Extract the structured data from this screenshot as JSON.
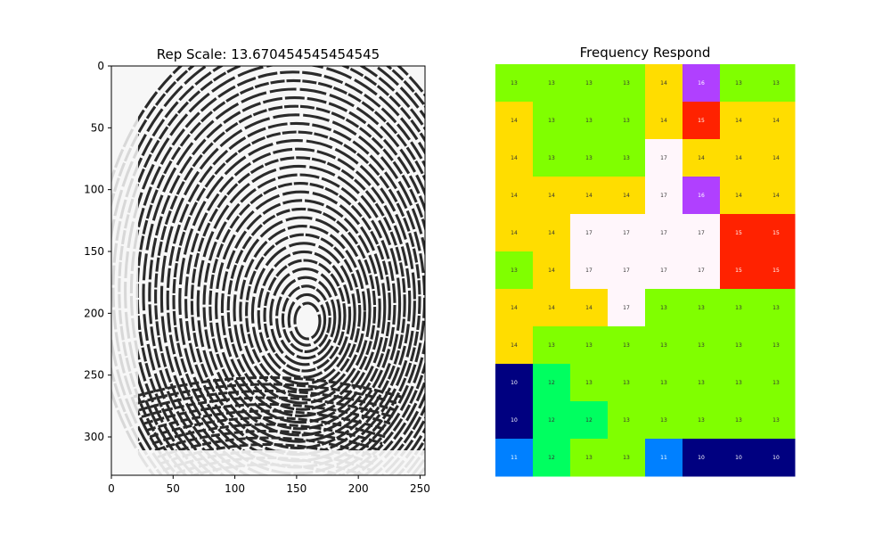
{
  "chart_data": [
    {
      "type": "image",
      "title": "Rep Scale: 13.670454545454545",
      "x_ticks": [
        "0",
        "50",
        "100",
        "150",
        "200",
        "250"
      ],
      "y_ticks": [
        "0",
        "50",
        "100",
        "150",
        "200",
        "250",
        "300"
      ],
      "xlim": [
        0,
        254
      ],
      "ylim": [
        331,
        0
      ],
      "x_tick_values": [
        0,
        50,
        100,
        150,
        200,
        250
      ],
      "y_tick_values": [
        0,
        50,
        100,
        150,
        200,
        250,
        300
      ],
      "content": "grayscale fingerprint image",
      "colors": {
        "ridge": "#2a2a2a",
        "background": "#f7f7f7"
      }
    },
    {
      "type": "heatmap",
      "title": "Frequency Respond",
      "rows": 11,
      "cols": 8,
      "values": [
        [
          13,
          13,
          13,
          13,
          14,
          16,
          13,
          13
        ],
        [
          14,
          13,
          13,
          13,
          14,
          15,
          14,
          14
        ],
        [
          14,
          13,
          13,
          13,
          17,
          14,
          14,
          14
        ],
        [
          14,
          14,
          14,
          14,
          17,
          16,
          14,
          14
        ],
        [
          14,
          14,
          17,
          17,
          17,
          17,
          15,
          15
        ],
        [
          13,
          14,
          17,
          17,
          17,
          17,
          15,
          15
        ],
        [
          14,
          14,
          14,
          17,
          13,
          13,
          13,
          13
        ],
        [
          14,
          13,
          13,
          13,
          13,
          13,
          13,
          13
        ],
        [
          10,
          12,
          13,
          13,
          13,
          13,
          13,
          13
        ],
        [
          10,
          12,
          12,
          13,
          13,
          13,
          13,
          13
        ],
        [
          11,
          12,
          13,
          13,
          11,
          10,
          10,
          10
        ]
      ],
      "colormap": {
        "10": "#000080",
        "11": "#0080ff",
        "12": "#00ff60",
        "13": "#80ff00",
        "14": "#ffdd00",
        "15": "#ff2200",
        "16": "#b040ff",
        "17": "#fff6fb"
      },
      "label_colors": {
        "dark": "#333333",
        "light": "#ffffff"
      }
    }
  ]
}
